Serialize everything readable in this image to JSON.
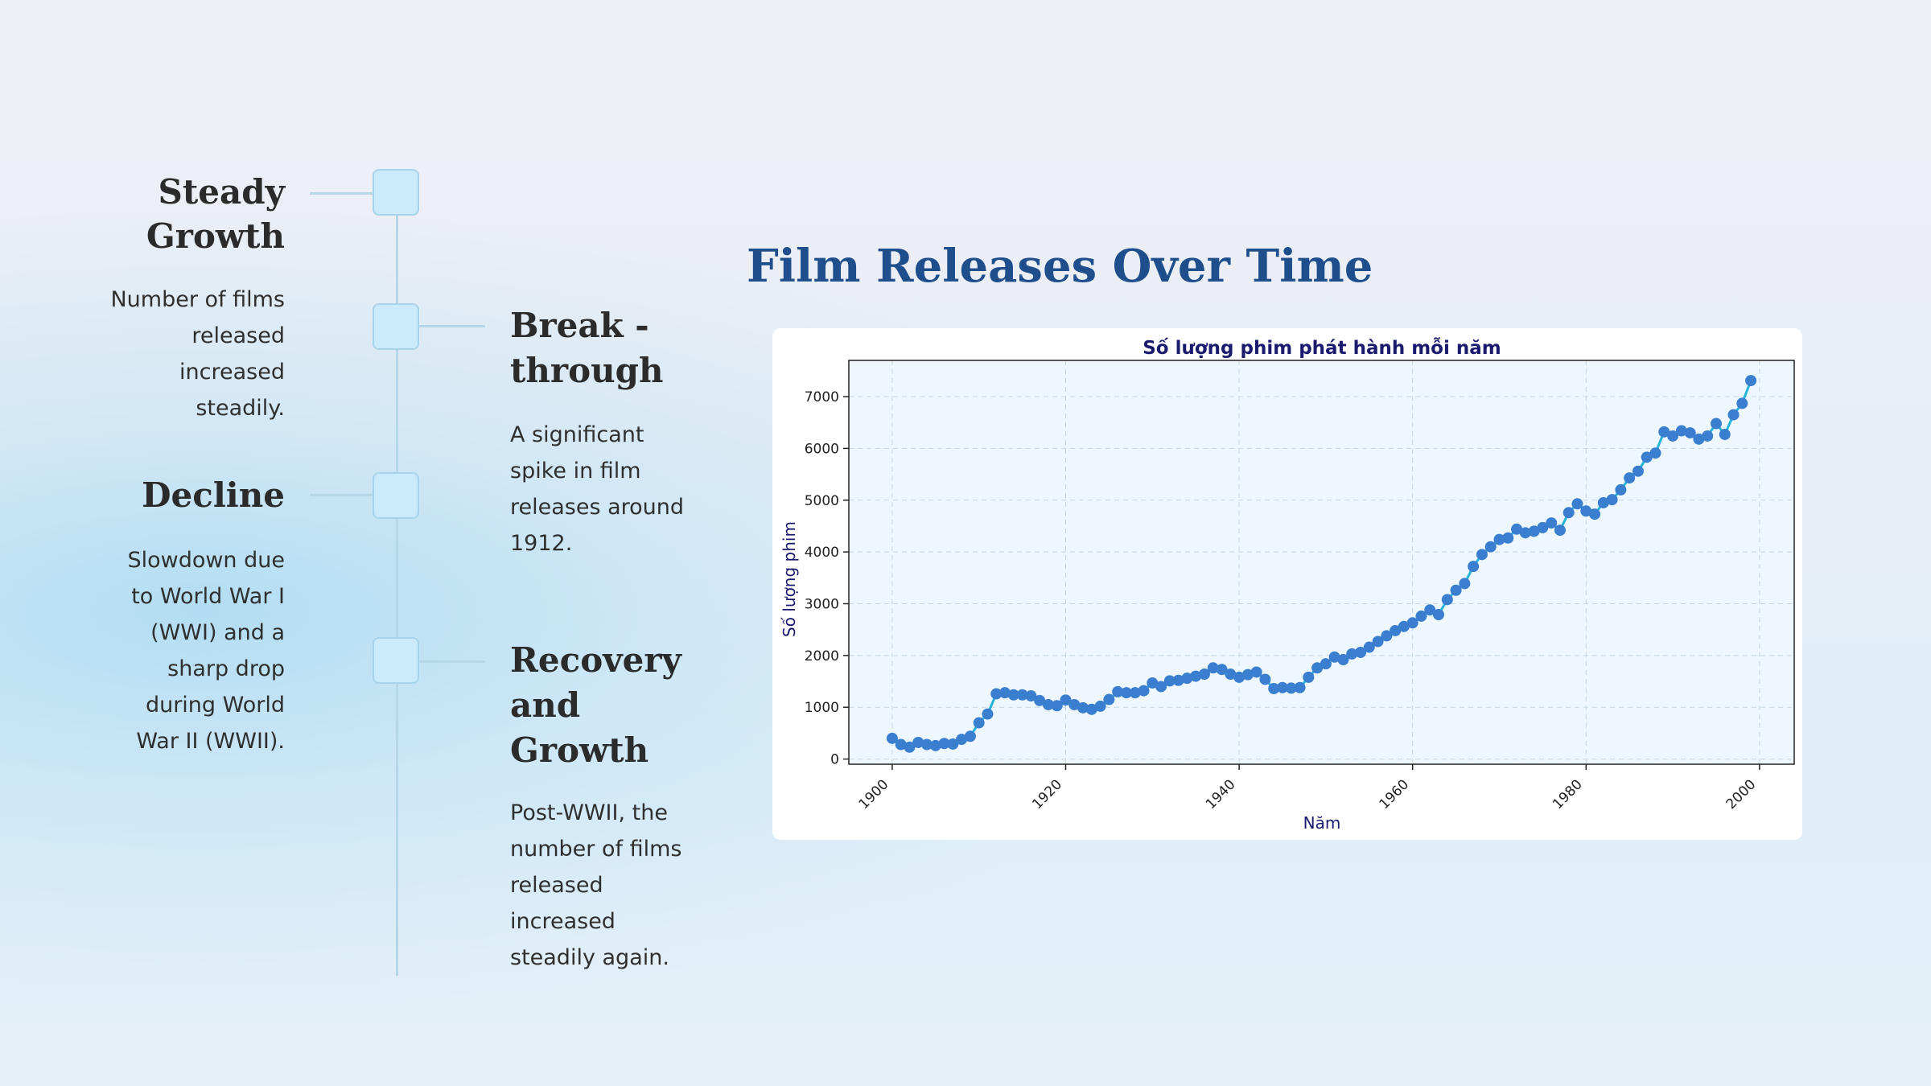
{
  "timeline": [
    {
      "title_lines": [
        "Steady",
        "Growth"
      ],
      "body_lines": [
        "Number of films",
        "released",
        "increased",
        "steadily."
      ]
    },
    {
      "title_lines": [
        "Break -",
        "through"
      ],
      "body_lines": [
        "A significant",
        "spike in film",
        "releases around",
        "1912."
      ]
    },
    {
      "title_lines": [
        "Decline"
      ],
      "body_lines": [
        "Slowdown due",
        "to World War I",
        "(WWI) and a",
        "sharp drop",
        "during World",
        "War II (WWII)."
      ]
    },
    {
      "title_lines": [
        "Recovery",
        "and",
        "Growth"
      ],
      "body_lines": [
        "Post-WWII, the",
        "number of films",
        "released",
        "increased",
        "steadily again."
      ]
    }
  ],
  "main_title": "Film Releases Over Time",
  "colors": {
    "line": "#26b5d8",
    "marker": "#3a7fcf",
    "title": "#1f4e8c",
    "chart_title": "#1a1a6e",
    "plot_bg": "#eef7fd"
  },
  "chart_data": {
    "type": "line",
    "title": "Số lượng phim phát hành mỗi năm",
    "xlabel": "Năm",
    "ylabel": "Số lượng phim",
    "xlim": [
      1895,
      2004
    ],
    "ylim": [
      -100,
      7700
    ],
    "xticks": [
      1900,
      1920,
      1940,
      1960,
      1980,
      2000
    ],
    "yticks": [
      0,
      1000,
      2000,
      3000,
      4000,
      5000,
      6000,
      7000
    ],
    "grid": true,
    "x": [
      1900,
      1901,
      1902,
      1903,
      1904,
      1905,
      1906,
      1907,
      1908,
      1909,
      1910,
      1911,
      1912,
      1913,
      1914,
      1915,
      1916,
      1917,
      1918,
      1919,
      1920,
      1921,
      1922,
      1923,
      1924,
      1925,
      1926,
      1927,
      1928,
      1929,
      1930,
      1931,
      1932,
      1933,
      1934,
      1935,
      1936,
      1937,
      1938,
      1939,
      1940,
      1941,
      1942,
      1943,
      1944,
      1945,
      1946,
      1947,
      1948,
      1949,
      1950,
      1951,
      1952,
      1953,
      1954,
      1955,
      1956,
      1957,
      1958,
      1959,
      1960,
      1961,
      1962,
      1963,
      1964,
      1965,
      1966,
      1967,
      1968,
      1969,
      1970,
      1971,
      1972,
      1973,
      1974,
      1975,
      1976,
      1977,
      1978,
      1979,
      1980,
      1981,
      1982,
      1983,
      1984,
      1985,
      1986,
      1987,
      1988,
      1989,
      1990,
      1991,
      1992,
      1993,
      1994,
      1995,
      1996,
      1997,
      1998,
      1999
    ],
    "series": [
      {
        "values": [
          400,
          280,
          230,
          320,
          280,
          260,
          300,
          290,
          380,
          440,
          700,
          870,
          1260,
          1280,
          1240,
          1240,
          1220,
          1130,
          1050,
          1030,
          1140,
          1050,
          990,
          960,
          1020,
          1150,
          1300,
          1280,
          1280,
          1320,
          1470,
          1400,
          1510,
          1520,
          1560,
          1600,
          1640,
          1760,
          1730,
          1640,
          1580,
          1630,
          1680,
          1540,
          1360,
          1380,
          1370,
          1380,
          1580,
          1760,
          1840,
          1970,
          1920,
          2030,
          2060,
          2160,
          2270,
          2380,
          2480,
          2560,
          2630,
          2760,
          2880,
          2790,
          3080,
          3260,
          3390,
          3720,
          3950,
          4100,
          4240,
          4270,
          4440,
          4370,
          4400,
          4470,
          4560,
          4420,
          4760,
          4930,
          4790,
          4730,
          4950,
          5010,
          5200,
          5430,
          5560,
          5830,
          5910,
          6320,
          6240,
          6340,
          6300,
          6180,
          6240,
          6480,
          6270,
          6650,
          6870,
          7310
        ]
      }
    ]
  }
}
